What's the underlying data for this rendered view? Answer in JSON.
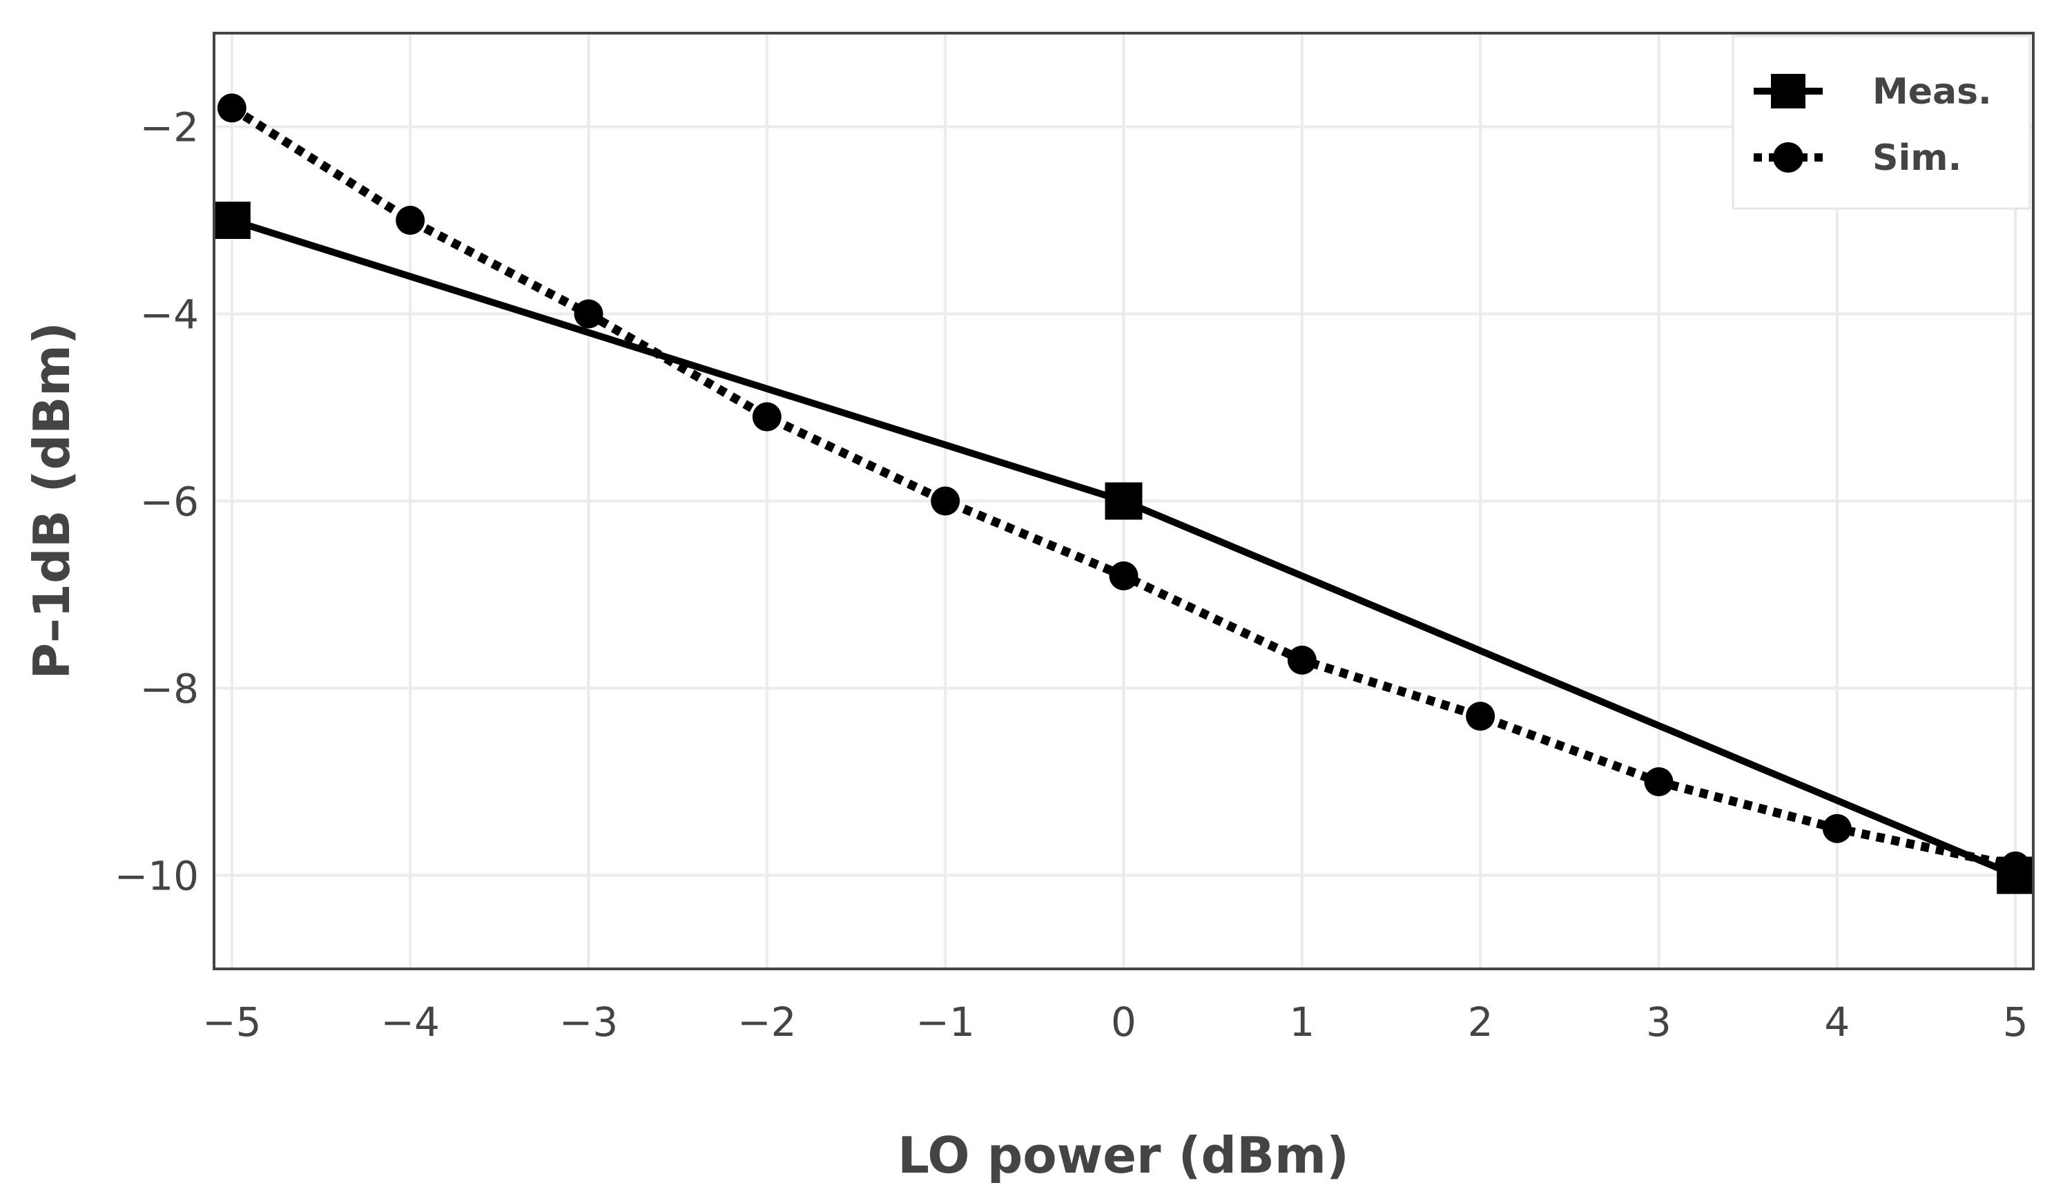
{
  "chart_data": {
    "type": "line",
    "xlabel": "LO power (dBm)",
    "ylabel": "P–1dB (dBm)",
    "xlim": [
      -5.1,
      5.1
    ],
    "ylim": [
      -11,
      -1
    ],
    "x_ticks": [
      -5,
      -4,
      -3,
      -2,
      -1,
      0,
      1,
      2,
      3,
      4,
      5
    ],
    "x_tick_labels": [
      "−5",
      "−4",
      "−3",
      "−2",
      "−1",
      "0",
      "1",
      "2",
      "3",
      "4",
      "5"
    ],
    "y_ticks": [
      -2,
      -4,
      -6,
      -8,
      -10
    ],
    "y_tick_labels": [
      "−2",
      "−4",
      "−6",
      "−8",
      "−10"
    ],
    "grid": true,
    "legend_position": "top-right",
    "series": [
      {
        "name": "Meas.",
        "line_style": "solid",
        "marker": "square",
        "color": "#000000",
        "x": [
          -5,
          0,
          5
        ],
        "y": [
          -3,
          -6,
          -10
        ]
      },
      {
        "name": "Sim.",
        "line_style": "dotted",
        "marker": "circle",
        "color": "#000000",
        "x": [
          -5,
          -4,
          -3,
          -2,
          -1,
          0,
          1,
          2,
          3,
          4,
          5
        ],
        "y": [
          -1.8,
          -3.0,
          -4.0,
          -5.1,
          -6.0,
          -6.8,
          -7.7,
          -8.3,
          -9.0,
          -9.5,
          -9.9
        ]
      }
    ]
  }
}
